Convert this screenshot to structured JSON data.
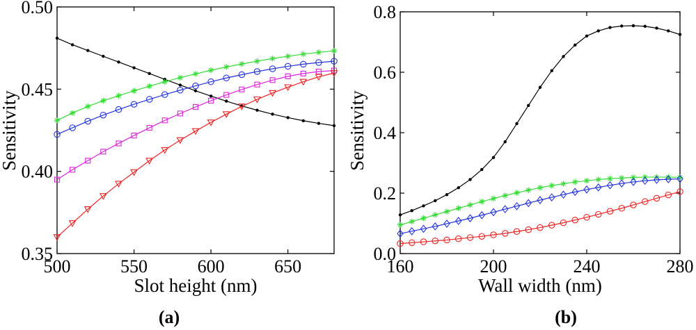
{
  "chart_data": [
    {
      "type": "line",
      "panel_label": "(a)",
      "xlabel": "Slot height (nm)",
      "ylabel": "Sensitivity",
      "xlim": [
        500,
        680
      ],
      "ylim": [
        0.35,
        0.5
      ],
      "xticks": [
        500,
        550,
        600,
        650
      ],
      "xtick_labels": [
        "500",
        "550",
        "600",
        "650"
      ],
      "yticks": [
        0.35,
        0.4,
        0.45,
        0.5
      ],
      "ytick_labels": [
        "0.35",
        "0.40",
        "0.45",
        "0.50"
      ],
      "grid": false,
      "series": [
        {
          "color": "#000000",
          "marker": "dot",
          "x": [
            500,
            510,
            520,
            530,
            540,
            550,
            560,
            570,
            580,
            590,
            600,
            610,
            620,
            630,
            640,
            650,
            660,
            670,
            680
          ],
          "y": [
            0.481,
            0.477,
            0.4735,
            0.47,
            0.4665,
            0.463,
            0.4595,
            0.456,
            0.4525,
            0.449,
            0.4458,
            0.4427,
            0.4398,
            0.4372,
            0.4348,
            0.4327,
            0.4308,
            0.4292,
            0.4278
          ]
        },
        {
          "color": "#33dd33",
          "marker": "asterisk",
          "x": [
            500,
            510,
            520,
            530,
            540,
            550,
            560,
            570,
            580,
            590,
            600,
            610,
            620,
            630,
            640,
            650,
            660,
            670,
            680
          ],
          "y": [
            0.431,
            0.4355,
            0.4395,
            0.443,
            0.446,
            0.449,
            0.4518,
            0.4545,
            0.457,
            0.4593,
            0.4615,
            0.4635,
            0.4653,
            0.467,
            0.4686,
            0.47,
            0.4713,
            0.4724,
            0.4733
          ]
        },
        {
          "color": "#2233dd",
          "marker": "circle",
          "x": [
            500,
            510,
            520,
            530,
            540,
            550,
            560,
            570,
            580,
            590,
            600,
            610,
            620,
            630,
            640,
            650,
            660,
            670,
            680
          ],
          "y": [
            0.4225,
            0.4265,
            0.4305,
            0.4342,
            0.4376,
            0.4408,
            0.4438,
            0.4467,
            0.4494,
            0.452,
            0.4545,
            0.4568,
            0.4588,
            0.4607,
            0.4624,
            0.4639,
            0.4652,
            0.4662,
            0.467
          ]
        },
        {
          "color": "#dd22dd",
          "marker": "square",
          "x": [
            500,
            510,
            520,
            530,
            540,
            550,
            560,
            570,
            580,
            590,
            600,
            610,
            620,
            630,
            640,
            650,
            660,
            670,
            680
          ],
          "y": [
            0.395,
            0.401,
            0.4065,
            0.412,
            0.417,
            0.4218,
            0.4265,
            0.431,
            0.4352,
            0.4392,
            0.443,
            0.4465,
            0.4498,
            0.4528,
            0.4555,
            0.4578,
            0.4595,
            0.4607,
            0.4613
          ]
        },
        {
          "color": "#ee2222",
          "marker": "triangle-down",
          "x": [
            500,
            510,
            520,
            530,
            540,
            550,
            560,
            570,
            580,
            590,
            600,
            610,
            620,
            630,
            640,
            650,
            660,
            670,
            680
          ],
          "y": [
            0.36,
            0.3685,
            0.377,
            0.385,
            0.3925,
            0.3995,
            0.4065,
            0.413,
            0.419,
            0.4245,
            0.4298,
            0.4348,
            0.4395,
            0.4438,
            0.4477,
            0.4512,
            0.4545,
            0.4575,
            0.4598
          ]
        }
      ]
    },
    {
      "type": "line",
      "panel_label": "(b)",
      "xlabel": "Wall width (nm)",
      "ylabel": "Sensitivity",
      "xlim": [
        160,
        280
      ],
      "ylim": [
        0.0,
        0.8
      ],
      "xticks": [
        160,
        200,
        240,
        280
      ],
      "xtick_labels": [
        "160",
        "200",
        "240",
        "280"
      ],
      "yticks": [
        0.0,
        0.2,
        0.4,
        0.6,
        0.8
      ],
      "ytick_labels": [
        "0.0",
        "0.2",
        "0.4",
        "0.6",
        "0.8"
      ],
      "grid": false,
      "series": [
        {
          "color": "#000000",
          "marker": "dot",
          "x": [
            160,
            165,
            170,
            175,
            180,
            185,
            190,
            195,
            200,
            205,
            210,
            215,
            220,
            225,
            230,
            235,
            240,
            245,
            250,
            255,
            260,
            265,
            270,
            275,
            280
          ],
          "y": [
            0.128,
            0.142,
            0.158,
            0.175,
            0.195,
            0.218,
            0.245,
            0.278,
            0.318,
            0.37,
            0.43,
            0.49,
            0.55,
            0.605,
            0.652,
            0.69,
            0.72,
            0.737,
            0.748,
            0.753,
            0.754,
            0.752,
            0.746,
            0.737,
            0.725
          ]
        },
        {
          "color": "#33dd33",
          "marker": "asterisk",
          "x": [
            160,
            165,
            170,
            175,
            180,
            185,
            190,
            195,
            200,
            205,
            210,
            215,
            220,
            225,
            230,
            235,
            240,
            245,
            250,
            255,
            260,
            265,
            270,
            275,
            280
          ],
          "y": [
            0.095,
            0.106,
            0.117,
            0.128,
            0.139,
            0.15,
            0.161,
            0.172,
            0.182,
            0.192,
            0.201,
            0.21,
            0.218,
            0.225,
            0.231,
            0.237,
            0.241,
            0.245,
            0.248,
            0.25,
            0.252,
            0.253,
            0.253,
            0.253,
            0.252
          ]
        },
        {
          "color": "#2233dd",
          "marker": "diamond",
          "x": [
            160,
            165,
            170,
            175,
            180,
            185,
            190,
            195,
            200,
            205,
            210,
            215,
            220,
            225,
            230,
            235,
            240,
            245,
            250,
            255,
            260,
            265,
            270,
            275,
            280
          ],
          "y": [
            0.066,
            0.074,
            0.082,
            0.09,
            0.099,
            0.108,
            0.117,
            0.127,
            0.137,
            0.147,
            0.157,
            0.167,
            0.177,
            0.186,
            0.195,
            0.204,
            0.212,
            0.219,
            0.226,
            0.232,
            0.237,
            0.241,
            0.244,
            0.246,
            0.247
          ]
        },
        {
          "color": "#ee2222",
          "marker": "circle",
          "x": [
            160,
            165,
            170,
            175,
            180,
            185,
            190,
            195,
            200,
            205,
            210,
            215,
            220,
            225,
            230,
            235,
            240,
            245,
            250,
            255,
            260,
            265,
            270,
            275,
            280
          ],
          "y": [
            0.033,
            0.036,
            0.039,
            0.042,
            0.045,
            0.049,
            0.053,
            0.057,
            0.062,
            0.067,
            0.073,
            0.079,
            0.086,
            0.094,
            0.102,
            0.111,
            0.12,
            0.13,
            0.14,
            0.15,
            0.161,
            0.172,
            0.183,
            0.194,
            0.205
          ]
        }
      ]
    }
  ]
}
